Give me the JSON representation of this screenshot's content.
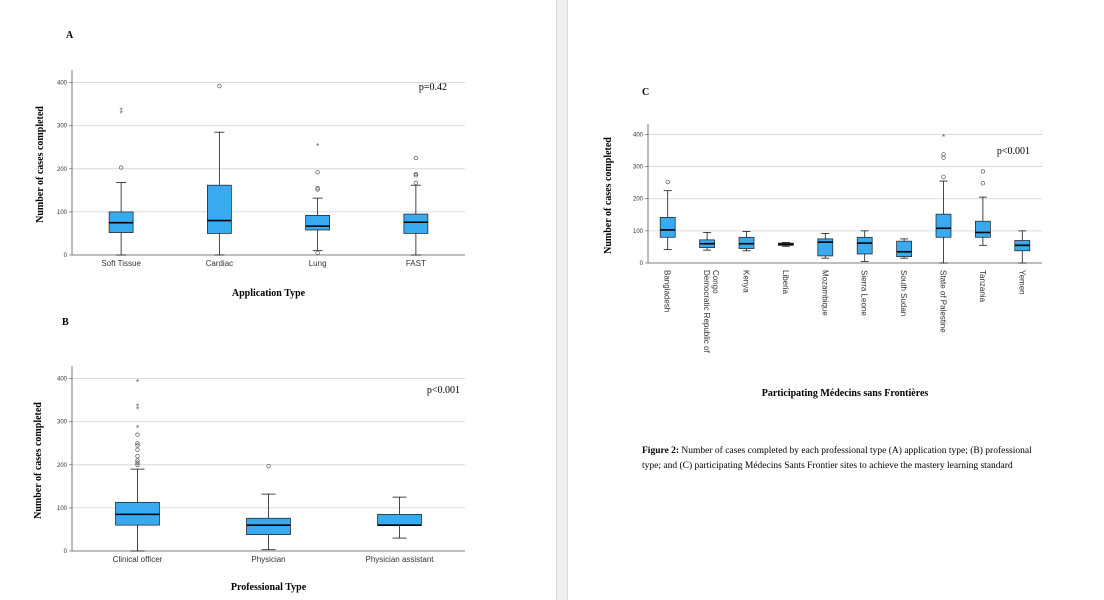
{
  "colors": {
    "box_fill": "#39A9F0",
    "box_stroke": "#1a1a1a",
    "grid": "#d0d0d0",
    "outlier": "#555555"
  },
  "figure_caption": {
    "label": "Figure 2:",
    "text": "Number of cases completed by each professional type (A) application type; (B) professional type; and (C) participating Médecins Sants Frontier sites to achieve the mastery learning standard"
  },
  "chart_data": [
    {
      "panel": "A",
      "type": "box",
      "ylabel": "Number of cases completed",
      "xlabel": "Application Type",
      "annotation": "p=0.42",
      "ylim": [
        0,
        420
      ],
      "yticks": [
        0,
        100,
        200,
        300,
        400
      ],
      "grid": true,
      "categories": [
        "Soft Tissue",
        "Cardiac",
        "Lung",
        "FAST"
      ],
      "boxes": [
        {
          "min": 0,
          "q1": 52,
          "median": 75,
          "q3": 100,
          "max": 168,
          "outliers": [
            203
          ],
          "extremes": [
            328,
            335
          ]
        },
        {
          "min": 0,
          "q1": 50,
          "median": 80,
          "q3": 162,
          "max": 285,
          "outliers": [
            392
          ],
          "extremes": []
        },
        {
          "min": 10,
          "q1": 58,
          "median": 67,
          "q3": 92,
          "max": 132,
          "outliers": [
            5,
            152,
            155,
            192
          ],
          "extremes": [
            253
          ]
        },
        {
          "min": 0,
          "q1": 50,
          "median": 76,
          "q3": 95,
          "max": 162,
          "outliers": [
            167,
            185,
            188,
            225
          ],
          "extremes": []
        }
      ]
    },
    {
      "panel": "B",
      "type": "box",
      "ylabel": "Number of cases completed",
      "xlabel": "Professional Type",
      "annotation": "p<0.001",
      "ylim": [
        0,
        420
      ],
      "yticks": [
        0,
        100,
        200,
        300,
        400
      ],
      "grid": true,
      "categories": [
        "Clinical officer",
        "Physician",
        "Physician assistant"
      ],
      "boxes": [
        {
          "min": 0,
          "q1": 60,
          "median": 85,
          "q3": 113,
          "max": 190,
          "outliers": [
            200,
            205,
            210,
            220,
            235,
            245,
            250,
            270
          ],
          "extremes": [
            285,
            328,
            335,
            392
          ]
        },
        {
          "min": 3,
          "q1": 38,
          "median": 60,
          "q3": 76,
          "max": 132,
          "outliers": [
            197
          ],
          "extremes": []
        },
        {
          "min": 30,
          "q1": 60,
          "median": 60,
          "q3": 85,
          "max": 125,
          "outliers": [],
          "extremes": []
        }
      ]
    },
    {
      "panel": "C",
      "type": "box",
      "ylabel": "Number of cases completed",
      "xlabel": "Participating Médecins sans Frontières",
      "annotation": "p<0.001",
      "ylim": [
        0,
        420
      ],
      "yticks": [
        0,
        100,
        200,
        300,
        400
      ],
      "grid": true,
      "categories": [
        "Bangladesh",
        "Democratic Republic of Congo",
        "Kenya",
        "Liberia",
        "Mozambique",
        "Sierra Leone",
        "South Sudan",
        "State of Palestine",
        "Tanzania",
        "Yemen"
      ],
      "boxes": [
        {
          "min": 42,
          "q1": 80,
          "median": 103,
          "q3": 142,
          "max": 225,
          "outliers": [
            252
          ],
          "extremes": []
        },
        {
          "min": 40,
          "q1": 48,
          "median": 60,
          "q3": 72,
          "max": 95,
          "outliers": [],
          "extremes": []
        },
        {
          "min": 38,
          "q1": 45,
          "median": 60,
          "q3": 80,
          "max": 98,
          "outliers": [],
          "extremes": []
        },
        {
          "min": 52,
          "q1": 55,
          "median": 58,
          "q3": 62,
          "max": 64,
          "outliers": [],
          "extremes": []
        },
        {
          "min": 15,
          "q1": 22,
          "median": 65,
          "q3": 75,
          "max": 92,
          "outliers": [],
          "extremes": []
        },
        {
          "min": 5,
          "q1": 28,
          "median": 62,
          "q3": 80,
          "max": 100,
          "outliers": [],
          "extremes": []
        },
        {
          "min": 15,
          "q1": 20,
          "median": 35,
          "q3": 68,
          "max": 75,
          "outliers": [],
          "extremes": []
        },
        {
          "min": 0,
          "q1": 80,
          "median": 108,
          "q3": 152,
          "max": 255,
          "outliers": [
            268,
            328,
            338
          ],
          "extremes": [
            392
          ]
        },
        {
          "min": 55,
          "q1": 80,
          "median": 95,
          "q3": 130,
          "max": 205,
          "outliers": [
            248,
            285
          ],
          "extremes": []
        },
        {
          "min": 0,
          "q1": 38,
          "median": 55,
          "q3": 70,
          "max": 100,
          "outliers": [],
          "extremes": []
        }
      ]
    }
  ]
}
